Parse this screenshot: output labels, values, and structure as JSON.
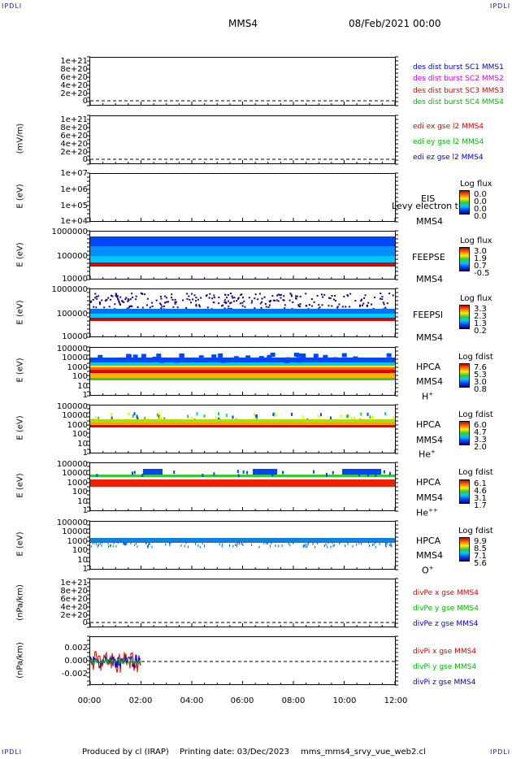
{
  "header": {
    "corner_tl": "IPDLI",
    "corner_tr": "IPDLI",
    "corner_bl": "IPDLI",
    "corner_br": "IPDLI",
    "title": "MMS4",
    "date": "08/Feb/2021 00:00"
  },
  "footer": {
    "produced": "Produced by cl (IRAP)",
    "printing": "Printing date: 03/Dec/2023",
    "script": "mms_mms4_srvy_vue_web2.cl"
  },
  "colors": {
    "blue": "#0000cc",
    "magenta": "#cc00cc",
    "red": "#dd0000",
    "green": "#00bb00"
  },
  "chart_data": [
    {
      "type": "line",
      "ylabel": "",
      "yticks": [
        "1e+21",
        "8e+20",
        "6e+20",
        "4e+20",
        "2e+20",
        "0"
      ],
      "legend": [
        {
          "name": "des dist burst SC1 MMS1",
          "color": "#0000cc"
        },
        {
          "name": "des dist burst SC2 MMS2",
          "color": "#cc00cc"
        },
        {
          "name": "des dist burst SC3 MMS3",
          "color": "#dd0000"
        },
        {
          "name": "des dist burst SC4 MMS4",
          "color": "#00bb00"
        }
      ]
    },
    {
      "type": "line",
      "ylabel": "(mV/m)",
      "yticks": [
        "1e+21",
        "8e+20",
        "6e+20",
        "4e+20",
        "2e+20",
        "0"
      ],
      "legend": [
        {
          "name": "edi ex gse l2 MMS4",
          "color": "#dd0000"
        },
        {
          "name": "edi ey gse l2 MMS4",
          "color": "#00bb00"
        },
        {
          "name": "edi ez gse l2 MMS4",
          "color": "#0000cc"
        }
      ]
    },
    {
      "type": "heatmap",
      "ylabel": "E (eV)",
      "yticks": [
        "1e+07",
        "1e+06",
        "1e+05",
        "1e+04"
      ],
      "instrument": [
        "EIS",
        "MMS4"
      ],
      "overlap": "Levy electron tc",
      "colorbar": {
        "title": "Log flux",
        "values": [
          "0.0",
          "0.0",
          "0.0",
          "0.0"
        ]
      }
    },
    {
      "type": "heatmap",
      "ylabel": "E (eV)",
      "yticks": [
        "1000000",
        "100000",
        "10000"
      ],
      "instrument": [
        "FEEPSE",
        "MMS4"
      ],
      "colorbar": {
        "title": "Log flux",
        "values": [
          "3.0",
          "1.9",
          "0.7",
          "-0.5"
        ]
      }
    },
    {
      "type": "heatmap",
      "ylabel": "E (eV)",
      "yticks": [
        "1000000",
        "100000",
        "10000"
      ],
      "instrument": [
        "FEEPSI",
        "MMS4"
      ],
      "colorbar": {
        "title": "Log flux",
        "values": [
          "3.3",
          "2.3",
          "1.3",
          "0.2"
        ]
      }
    },
    {
      "type": "heatmap",
      "ylabel": "E (eV)",
      "yticks": [
        "100000",
        "10000",
        "1000",
        "100",
        "10",
        "1"
      ],
      "instrument": [
        "HPCA",
        "MMS4",
        "H",
        "+"
      ],
      "colorbar": {
        "title": "Log fdist",
        "values": [
          "7.6",
          "5.3",
          "3.0",
          "0.8"
        ]
      }
    },
    {
      "type": "heatmap",
      "ylabel": "E (eV)",
      "yticks": [
        "100000",
        "10000",
        "1000",
        "100",
        "10",
        "1"
      ],
      "instrument": [
        "HPCA",
        "MMS4",
        "He",
        "+"
      ],
      "colorbar": {
        "title": "Log fdist",
        "values": [
          "6.0",
          "4.7",
          "3.3",
          "2.0"
        ]
      }
    },
    {
      "type": "heatmap",
      "ylabel": "E (eV)",
      "yticks": [
        "100000",
        "10000",
        "1000",
        "100",
        "10",
        "1"
      ],
      "instrument": [
        "HPCA",
        "MMS4",
        "He",
        "++"
      ],
      "colorbar": {
        "title": "Log fdist",
        "values": [
          "6.1",
          "4.6",
          "3.1",
          "1.7"
        ]
      }
    },
    {
      "type": "heatmap",
      "ylabel": "E (eV)",
      "yticks": [
        "100000",
        "10000",
        "1000",
        "100",
        "10",
        "1"
      ],
      "instrument": [
        "HPCA",
        "MMS4",
        "O",
        "+"
      ],
      "colorbar": {
        "title": "Log fdist",
        "values": [
          "9.9",
          "8.5",
          "7.1",
          "5.6"
        ]
      }
    },
    {
      "type": "line",
      "ylabel": "(nPa/km)",
      "yticks": [
        "1e+21",
        "8e+20",
        "6e+20",
        "4e+20",
        "2e+20",
        "0"
      ],
      "legend": [
        {
          "name": "divPe x gse MMS4",
          "color": "#dd0000"
        },
        {
          "name": "divPe y gse MMS4",
          "color": "#00bb00"
        },
        {
          "name": "divPe z gse MMS4",
          "color": "#0000cc"
        }
      ]
    },
    {
      "type": "line",
      "ylabel": "(nPa/km)",
      "yticks": [
        "0.002",
        "0.000",
        "-0.002"
      ],
      "legend": [
        {
          "name": "divPi x gse MMS4",
          "color": "#dd0000"
        },
        {
          "name": "divPi y gse MMS4",
          "color": "#00bb00"
        },
        {
          "name": "divPi z gse MMS4",
          "color": "#0000cc"
        }
      ],
      "ylim": [
        -0.003,
        0.003
      ],
      "data_end": "02:00"
    }
  ],
  "xaxis": {
    "ticks": [
      "00:00",
      "02:00",
      "04:00",
      "06:00",
      "08:00",
      "10:00",
      "12:00"
    ],
    "range": [
      "00:00",
      "12:00"
    ]
  }
}
